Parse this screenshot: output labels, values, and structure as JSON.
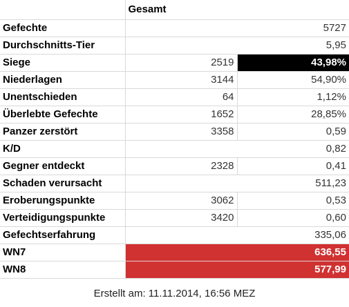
{
  "header": {
    "title": "Gesamt"
  },
  "rows": [
    {
      "label": "Gefechte",
      "absolute": "",
      "relative": "5727"
    },
    {
      "label": "Durchschnitts-Tier",
      "absolute": "",
      "relative": "5,95"
    },
    {
      "label": "Siege",
      "absolute": "2519",
      "relative": "43,98%"
    },
    {
      "label": "Niederlagen",
      "absolute": "3144",
      "relative": "54,90%"
    },
    {
      "label": "Unentschieden",
      "absolute": "64",
      "relative": "1,12%"
    },
    {
      "label": "Überlebte Gefechte",
      "absolute": "1652",
      "relative": "28,85%"
    },
    {
      "label": "Panzer zerstört",
      "absolute": "3358",
      "relative": "0,59"
    },
    {
      "label": "K/D",
      "absolute": "",
      "relative": "0,82"
    },
    {
      "label": "Gegner entdeckt",
      "absolute": "2328",
      "relative": "0,41"
    },
    {
      "label": "Schaden verursacht",
      "absolute": "",
      "relative": "511,23"
    },
    {
      "label": "Eroberungspunkte",
      "absolute": "3062",
      "relative": "0,53"
    },
    {
      "label": "Verteidigungspunkte",
      "absolute": "3420",
      "relative": "0,60"
    },
    {
      "label": "Gefechtserfahrung",
      "absolute": "",
      "relative": "335,06"
    },
    {
      "label": "WN7",
      "absolute": "",
      "relative": "636,55"
    },
    {
      "label": "WN8",
      "absolute": "",
      "relative": "577,99"
    }
  ],
  "colors": {
    "highlight_black": "#000000",
    "highlight_red": "#d03131"
  },
  "footer": {
    "created": "Erstellt am: 11.11.2014, 16:56 MEZ"
  }
}
